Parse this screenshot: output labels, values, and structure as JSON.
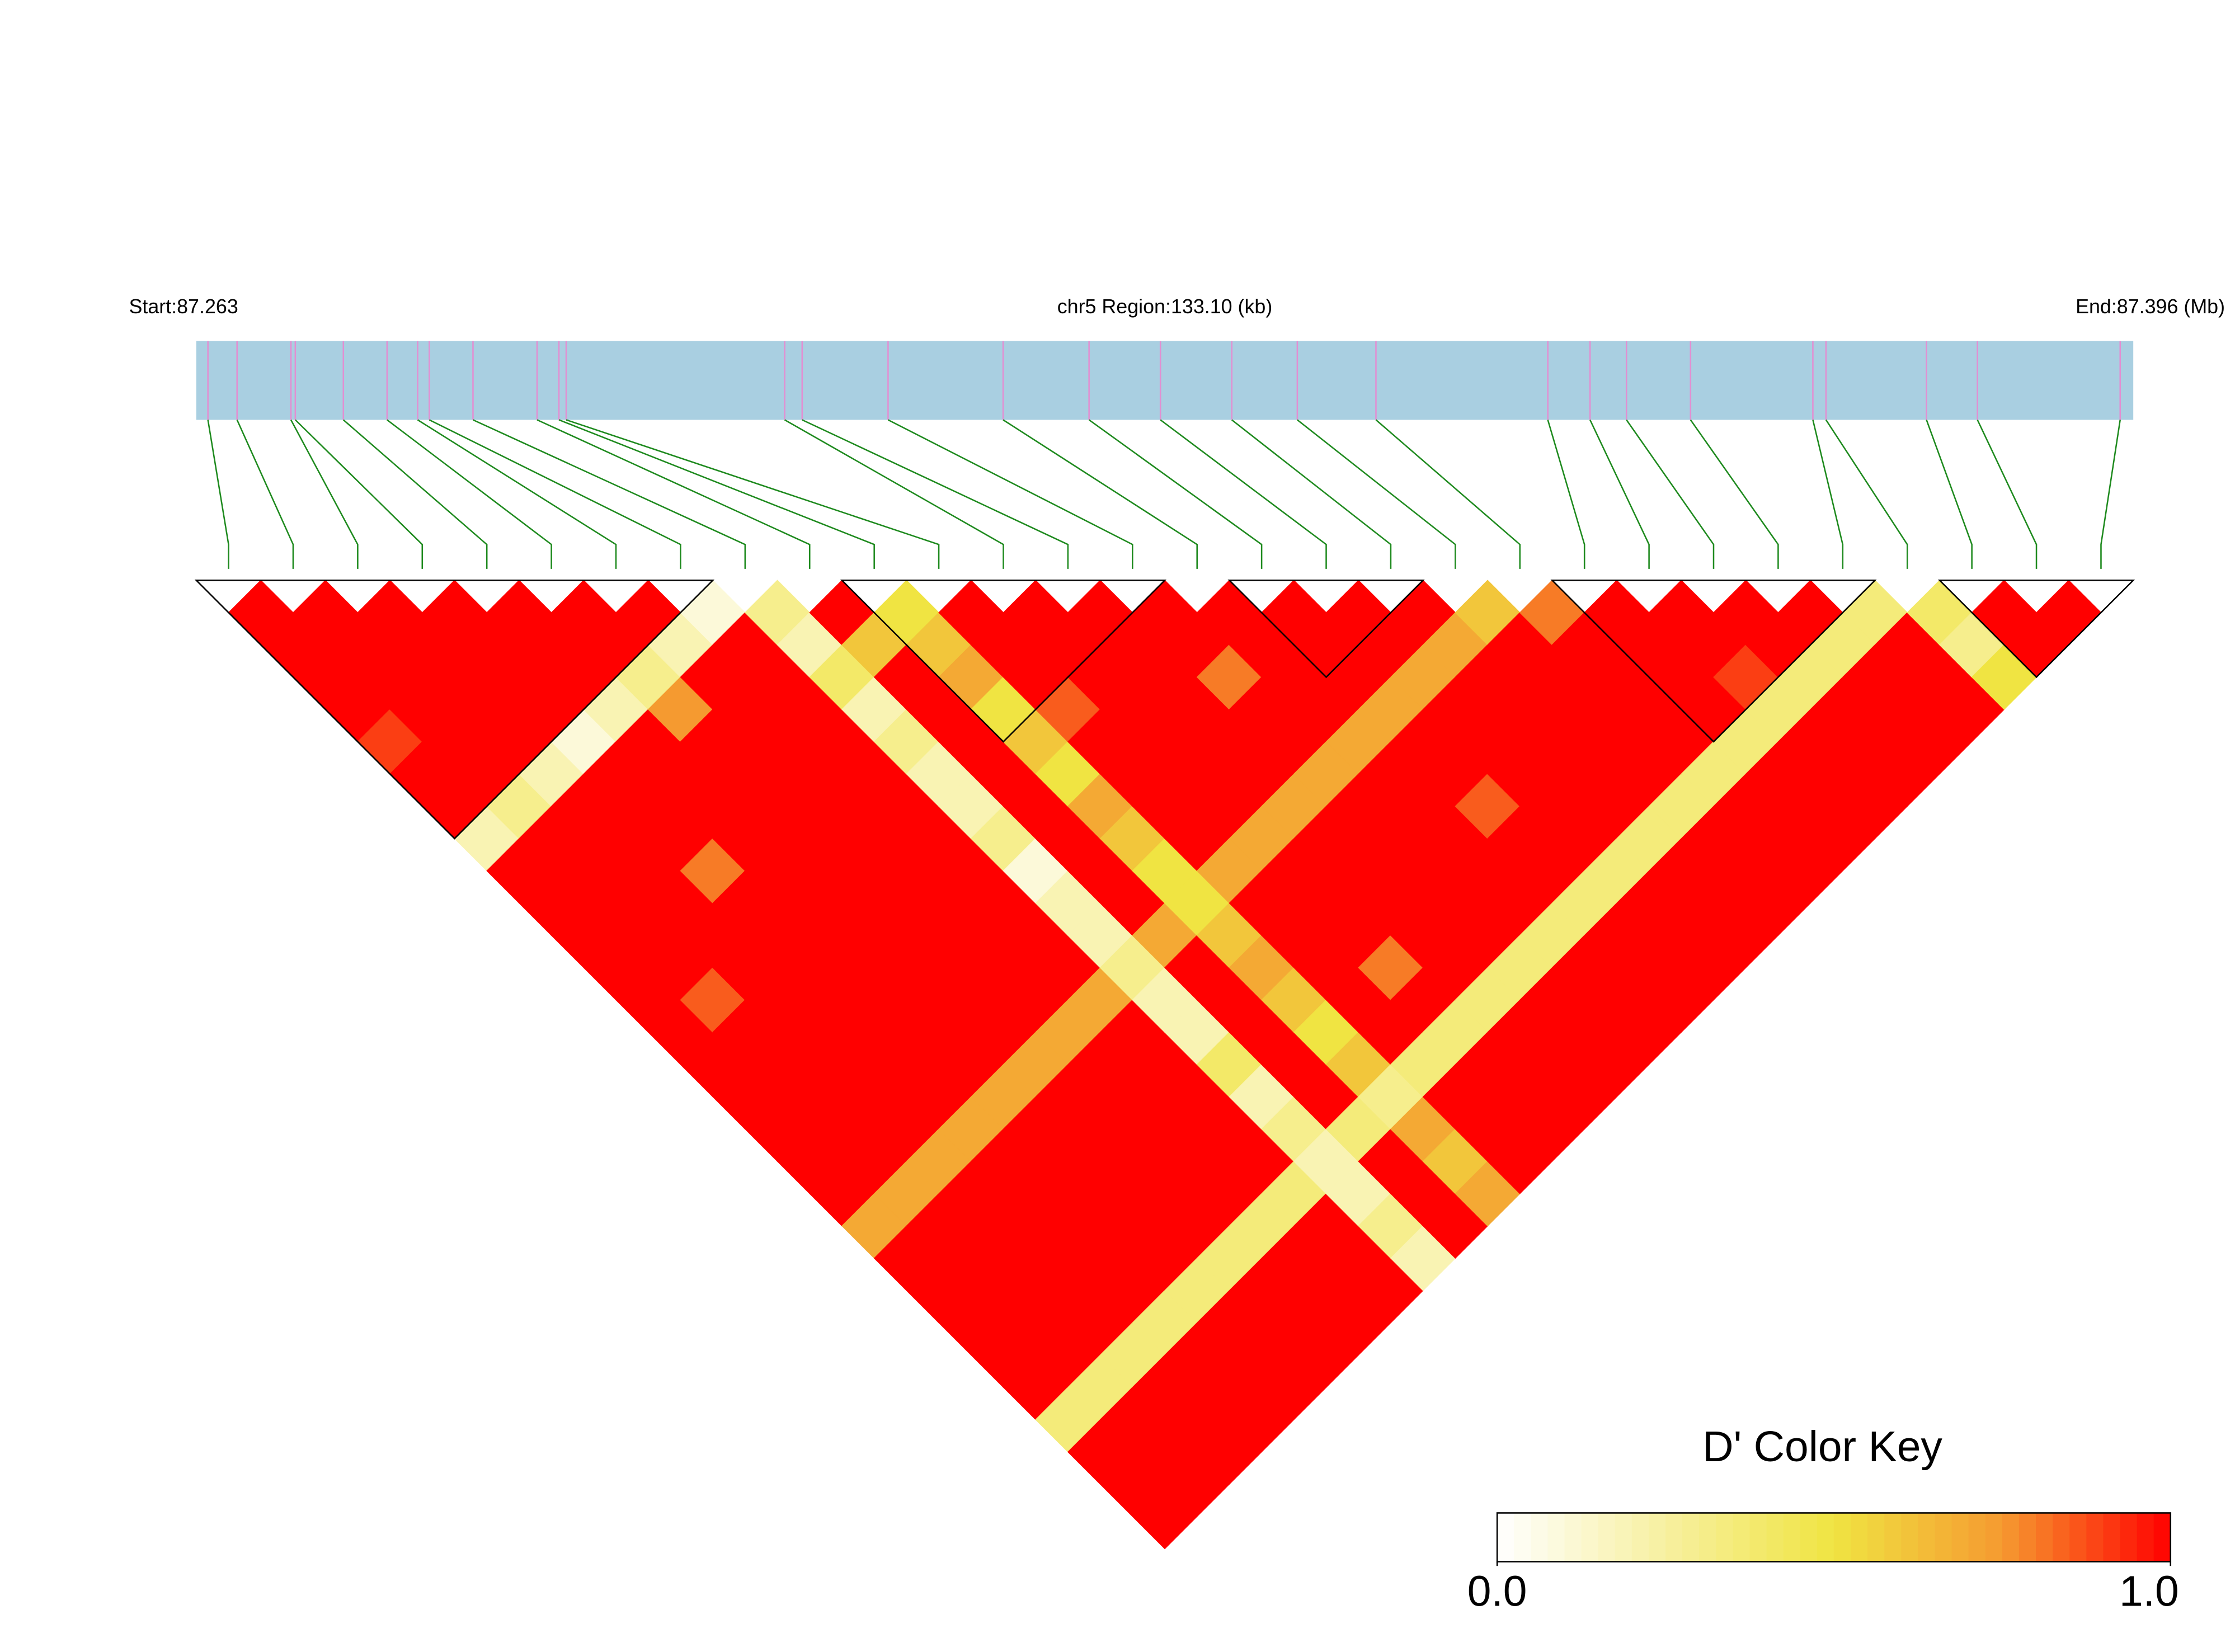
{
  "chart_data": {
    "type": "ld_heatmap",
    "start_label": "Start:87.263",
    "region_label": "chr5 Region:133.10 (kb)",
    "end_label": "End:87.396 (Mb)",
    "key_title": "D' Color Key",
    "xlim": [
      87.263,
      87.396
    ],
    "positions": [
      87.2638,
      87.2658,
      87.2695,
      87.2698,
      87.2731,
      87.2761,
      87.2782,
      87.279,
      87.282,
      87.2864,
      87.2879,
      87.2884,
      87.3034,
      87.3046,
      87.3105,
      87.3184,
      87.3243,
      87.3292,
      87.3341,
      87.3386,
      87.344,
      87.3558,
      87.3587,
      87.3612,
      87.3656,
      87.374,
      87.3749,
      87.3818,
      87.3853,
      87.3951
    ],
    "dprime": [
      [
        1,
        1,
        1,
        1,
        0.9,
        1,
        1,
        0.2,
        1,
        1,
        1,
        1,
        1,
        1,
        1,
        1,
        1,
        1,
        1,
        0.7,
        1,
        1,
        1,
        1,
        1,
        0.35,
        1,
        1,
        1
      ],
      [
        1,
        1,
        1,
        1,
        1,
        1,
        0.3,
        1,
        1,
        1,
        1,
        1,
        0.85,
        1,
        1,
        1,
        1,
        1,
        0.7,
        1,
        1,
        1,
        1,
        1,
        0.35,
        1,
        1,
        1
      ],
      [
        1,
        1,
        1,
        1,
        1,
        0.2,
        1,
        1,
        1,
        1,
        1,
        1,
        1,
        1,
        1,
        1,
        1,
        0.7,
        1,
        1,
        1,
        1,
        1,
        0.35,
        1,
        1,
        1
      ],
      [
        1,
        1,
        1,
        1,
        0.1,
        1,
        1,
        1,
        0.8,
        1,
        1,
        1,
        1,
        1,
        1,
        1,
        0.7,
        1,
        1,
        1,
        1,
        1,
        0.35,
        1,
        1,
        1
      ],
      [
        1,
        1,
        1,
        0.2,
        1,
        1,
        1,
        1,
        1,
        1,
        1,
        1,
        1,
        1,
        1,
        0.7,
        1,
        1,
        1,
        1,
        1,
        0.35,
        1,
        1,
        1
      ],
      [
        1,
        1,
        0.3,
        0.75,
        1,
        1,
        1,
        1,
        1,
        1,
        1,
        1,
        1,
        1,
        0.7,
        1,
        1,
        1,
        1,
        1,
        0.35,
        1,
        1,
        1
      ],
      [
        1,
        0.2,
        1,
        1,
        1,
        1,
        1,
        1,
        1,
        1,
        1,
        1,
        1,
        0.7,
        1,
        1,
        1,
        1,
        1,
        0.35,
        1,
        1,
        1
      ],
      [
        0.1,
        1,
        1,
        1,
        1,
        1,
        1,
        1,
        1,
        1,
        1,
        1,
        0.7,
        1,
        1,
        1,
        1,
        1,
        0.35,
        1,
        1,
        1
      ],
      [
        0.3,
        0.2,
        0.4,
        0.2,
        0.3,
        0.2,
        0.2,
        0.3,
        0.1,
        0.2,
        0.2,
        0.3,
        0.2,
        0.2,
        0.4,
        0.2,
        0.3,
        0.2,
        0.2,
        0.3,
        0.2
      ],
      [
        1,
        0.6,
        1,
        1,
        1,
        1,
        1,
        1,
        1,
        1,
        0.7,
        1,
        1,
        1,
        1,
        1,
        0.35,
        1,
        1,
        1
      ],
      [
        0.5,
        0.6,
        0.7,
        0.5,
        0.6,
        0.5,
        0.7,
        0.6,
        0.5,
        0.5,
        0.6,
        0.7,
        0.6,
        0.5,
        0.6,
        0.3,
        0.7,
        0.6,
        0.7
      ],
      [
        1,
        1,
        1,
        0.85,
        1,
        1,
        1,
        1,
        0.7,
        1,
        1,
        1,
        1,
        1,
        0.35,
        1,
        1,
        1
      ],
      [
        1,
        1,
        1,
        1,
        1,
        1,
        1,
        0.7,
        1,
        1,
        1,
        0.8,
        1,
        0.35,
        1,
        1,
        1
      ],
      [
        1,
        1,
        1,
        1,
        1,
        1,
        0.7,
        1,
        1,
        1,
        1,
        1,
        0.35,
        1,
        1,
        1
      ],
      [
        1,
        1,
        0.8,
        1,
        1,
        0.7,
        1,
        1,
        1,
        1,
        1,
        0.35,
        1,
        1,
        1
      ],
      [
        1,
        1,
        1,
        1,
        0.7,
        1,
        1,
        1,
        1,
        1,
        0.35,
        1,
        1,
        1
      ],
      [
        1,
        1,
        1,
        0.7,
        1,
        1,
        0.85,
        1,
        1,
        0.35,
        1,
        1,
        1
      ],
      [
        1,
        1,
        0.7,
        1,
        1,
        1,
        1,
        1,
        0.35,
        1,
        1,
        1
      ],
      [
        1,
        0.7,
        1,
        1,
        1,
        1,
        1,
        0.35,
        1,
        1,
        1
      ],
      [
        0.6,
        1,
        1,
        1,
        1,
        1,
        0.35,
        1,
        1,
        1
      ],
      [
        0.8,
        1,
        1,
        1,
        1,
        0.35,
        1,
        1,
        1
      ],
      [
        1,
        1,
        1,
        1,
        0.35,
        1,
        1,
        1
      ],
      [
        1,
        1,
        0.9,
        0.35,
        1,
        1,
        1
      ],
      [
        1,
        1,
        0.35,
        1,
        1,
        1
      ],
      [
        1,
        0.35,
        1,
        1,
        1
      ],
      [
        0.35,
        1,
        1,
        1
      ],
      [
        0.4,
        0.3,
        0.5
      ],
      [
        1,
        1
      ],
      [
        1
      ]
    ],
    "blocks": [
      [
        0,
        7
      ],
      [
        10,
        14
      ],
      [
        16,
        18
      ],
      [
        21,
        25
      ],
      [
        27,
        29
      ]
    ],
    "key_ticks": [
      {
        "value": 0,
        "label": "0.0"
      },
      {
        "value": 1,
        "label": "1.0"
      }
    ],
    "colors": [
      "#ffffff",
      "#f7f0a0",
      "#f0e442",
      "#f59a30",
      "#ff0000"
    ],
    "track_color": "#a9cfe1",
    "snp_color": "#e28fd2",
    "connector_color": "#1e8a1e"
  }
}
